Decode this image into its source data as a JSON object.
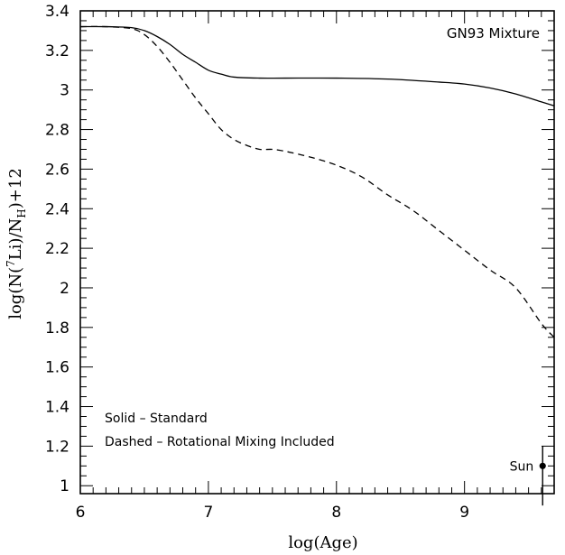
{
  "chart_data": {
    "type": "line",
    "title": "",
    "annotation": "GN93 Mixture",
    "xlabel": "log(Age)",
    "ylabel": "log(N(⁷Li)/N_H)+12",
    "ylabel_parts": {
      "prefix": "log(N(",
      "sup": "7",
      "mid": "Li)/N",
      "sub": "H",
      "suffix": ")+12"
    },
    "xlim": [
      6,
      9.7
    ],
    "ylim": [
      0.96,
      3.4
    ],
    "xticks": [
      6,
      7,
      8,
      9
    ],
    "xtick_labels": [
      "6",
      "7",
      "8",
      "9"
    ],
    "yticks": [
      1,
      1.2,
      1.4,
      1.6,
      1.8,
      2,
      2.2,
      2.4,
      2.6,
      2.8,
      3,
      3.2,
      3.4
    ],
    "ytick_labels": [
      "1",
      "1.2",
      "1.4",
      "1.6",
      "1.8",
      "2",
      "2.2",
      "2.4",
      "2.6",
      "2.8",
      "3",
      "3.2",
      "3.4"
    ],
    "grid": false,
    "legend_lines": [
      "Solid – Standard",
      "Dashed – Rotational Mixing Included"
    ],
    "series": [
      {
        "name": "Standard",
        "style": "solid",
        "x": [
          6.0,
          6.2,
          6.4,
          6.5,
          6.6,
          6.7,
          6.8,
          6.9,
          7.0,
          7.1,
          7.2,
          7.4,
          7.6,
          8.0,
          8.4,
          8.8,
          9.0,
          9.2,
          9.4,
          9.6,
          9.7
        ],
        "y": [
          3.32,
          3.32,
          3.315,
          3.3,
          3.27,
          3.23,
          3.18,
          3.14,
          3.1,
          3.08,
          3.065,
          3.06,
          3.06,
          3.06,
          3.055,
          3.04,
          3.03,
          3.01,
          2.98,
          2.94,
          2.92
        ]
      },
      {
        "name": "Rotational Mixing Included",
        "style": "dashed",
        "x": [
          6.0,
          6.2,
          6.4,
          6.5,
          6.6,
          6.7,
          6.8,
          6.9,
          7.0,
          7.1,
          7.2,
          7.3,
          7.4,
          7.5,
          7.6,
          7.8,
          8.0,
          8.2,
          8.4,
          8.6,
          8.8,
          9.0,
          9.2,
          9.4,
          9.6,
          9.7
        ],
        "y": [
          3.32,
          3.32,
          3.31,
          3.28,
          3.22,
          3.14,
          3.05,
          2.96,
          2.88,
          2.8,
          2.75,
          2.72,
          2.7,
          2.7,
          2.69,
          2.66,
          2.62,
          2.56,
          2.47,
          2.39,
          2.29,
          2.19,
          2.09,
          2.0,
          1.82,
          1.75
        ]
      }
    ],
    "points": [
      {
        "label": "Sun",
        "x": 9.61,
        "y": 1.1,
        "err_low": 0.2,
        "err_high": 0.1
      }
    ]
  }
}
